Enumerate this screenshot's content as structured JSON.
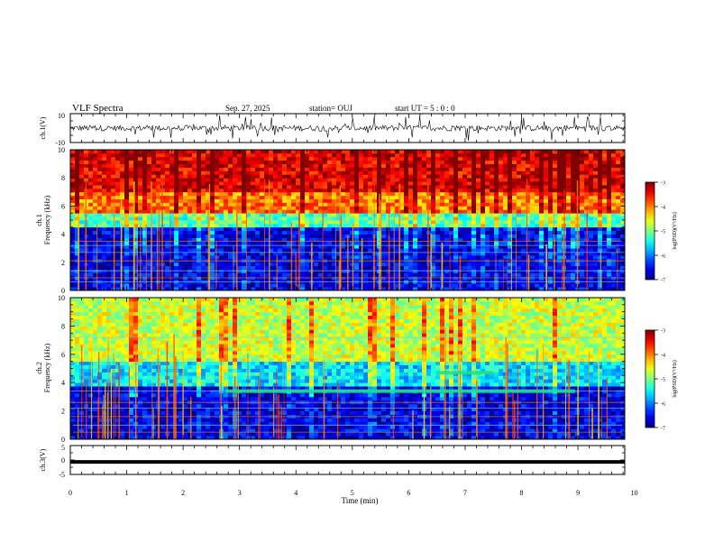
{
  "header": {
    "title": "VLF Spectra",
    "date": "Sep. 27, 2025",
    "station": "station= OUJ",
    "start": "start  UT  =   5  : 0   : 0"
  },
  "chart_data": [
    {
      "type": "line",
      "name": "ch.1 waveform",
      "ylabel": "ch.1(V)",
      "ylim": [
        -10,
        10
      ],
      "yticks": [
        "10",
        "-10"
      ],
      "xlim": [
        0,
        9.83
      ],
      "description_values": {
        "baseline_v": 0,
        "typical_amplitude_v": 2,
        "max_spike_v": 9
      }
    },
    {
      "type": "heatmap",
      "name": "ch.1 spectrogram",
      "ylabel": "ch.1 Frequency  (kHz)",
      "ylim": [
        0,
        10
      ],
      "yticks": [
        "0",
        "2",
        "4",
        "6",
        "8",
        "10"
      ],
      "xlim": [
        0,
        9.83
      ],
      "colorbar": {
        "label": "log(PSD)(V²/Hz)",
        "range": [
          -7,
          -3
        ],
        "ticks": [
          "-3",
          "-4",
          "-5",
          "-6",
          "-7"
        ]
      },
      "bands": [
        {
          "from_khz": 0,
          "to_khz": 4.5,
          "log_psd": -6.6
        },
        {
          "from_khz": 4.5,
          "to_khz": 5.5,
          "log_psd": -5.2
        },
        {
          "from_khz": 5.5,
          "to_khz": 7,
          "log_psd": -4.0
        },
        {
          "from_khz": 7,
          "to_khz": 10,
          "log_psd": -3.4
        }
      ],
      "lines_khz": [
        3.2,
        3.5,
        2.7,
        2.1,
        1.4,
        0.9,
        0.6
      ]
    },
    {
      "type": "heatmap",
      "name": "ch.2 spectrogram",
      "ylabel": "ch.2 Frequency  (kHz)",
      "ylim": [
        0,
        10
      ],
      "yticks": [
        "0",
        "2",
        "4",
        "6",
        "8",
        "10"
      ],
      "xlim": [
        0,
        9.83
      ],
      "colorbar": {
        "label": "log(PSD)(V²/Hz)",
        "range": [
          -7,
          -3
        ],
        "ticks": [
          "-3",
          "-4",
          "-5",
          "-6",
          "-7"
        ]
      },
      "bands": [
        {
          "from_khz": 0,
          "to_khz": 3.8,
          "log_psd": -6.6
        },
        {
          "from_khz": 3.8,
          "to_khz": 5.5,
          "log_psd": -5.6
        },
        {
          "from_khz": 5.5,
          "to_khz": 10,
          "log_psd": -4.7
        }
      ],
      "lines_khz": [
        3.4,
        2.6,
        2.2,
        1.6,
        1.0,
        0.5,
        7.2
      ],
      "emissions": [
        {
          "t_start_min": 2.75,
          "t_end_min": 8.95,
          "f_khz": 3.4
        },
        {
          "t_start_min": 6.5,
          "t_end_min": 7.5,
          "f_khz": 4.7
        }
      ]
    },
    {
      "type": "line",
      "name": "ch.3 waveform",
      "ylabel": "ch.3(V)",
      "ylim": [
        -5,
        5
      ],
      "yticks": [
        "5",
        "0",
        "-5"
      ],
      "xlim": [
        0,
        9.83
      ],
      "constant_value_v": -0.5
    }
  ],
  "xaxis": {
    "label": "Time  (min)",
    "ticks": [
      "0",
      "1",
      "2",
      "3",
      "4",
      "5",
      "6",
      "7",
      "8",
      "9",
      "10"
    ]
  }
}
